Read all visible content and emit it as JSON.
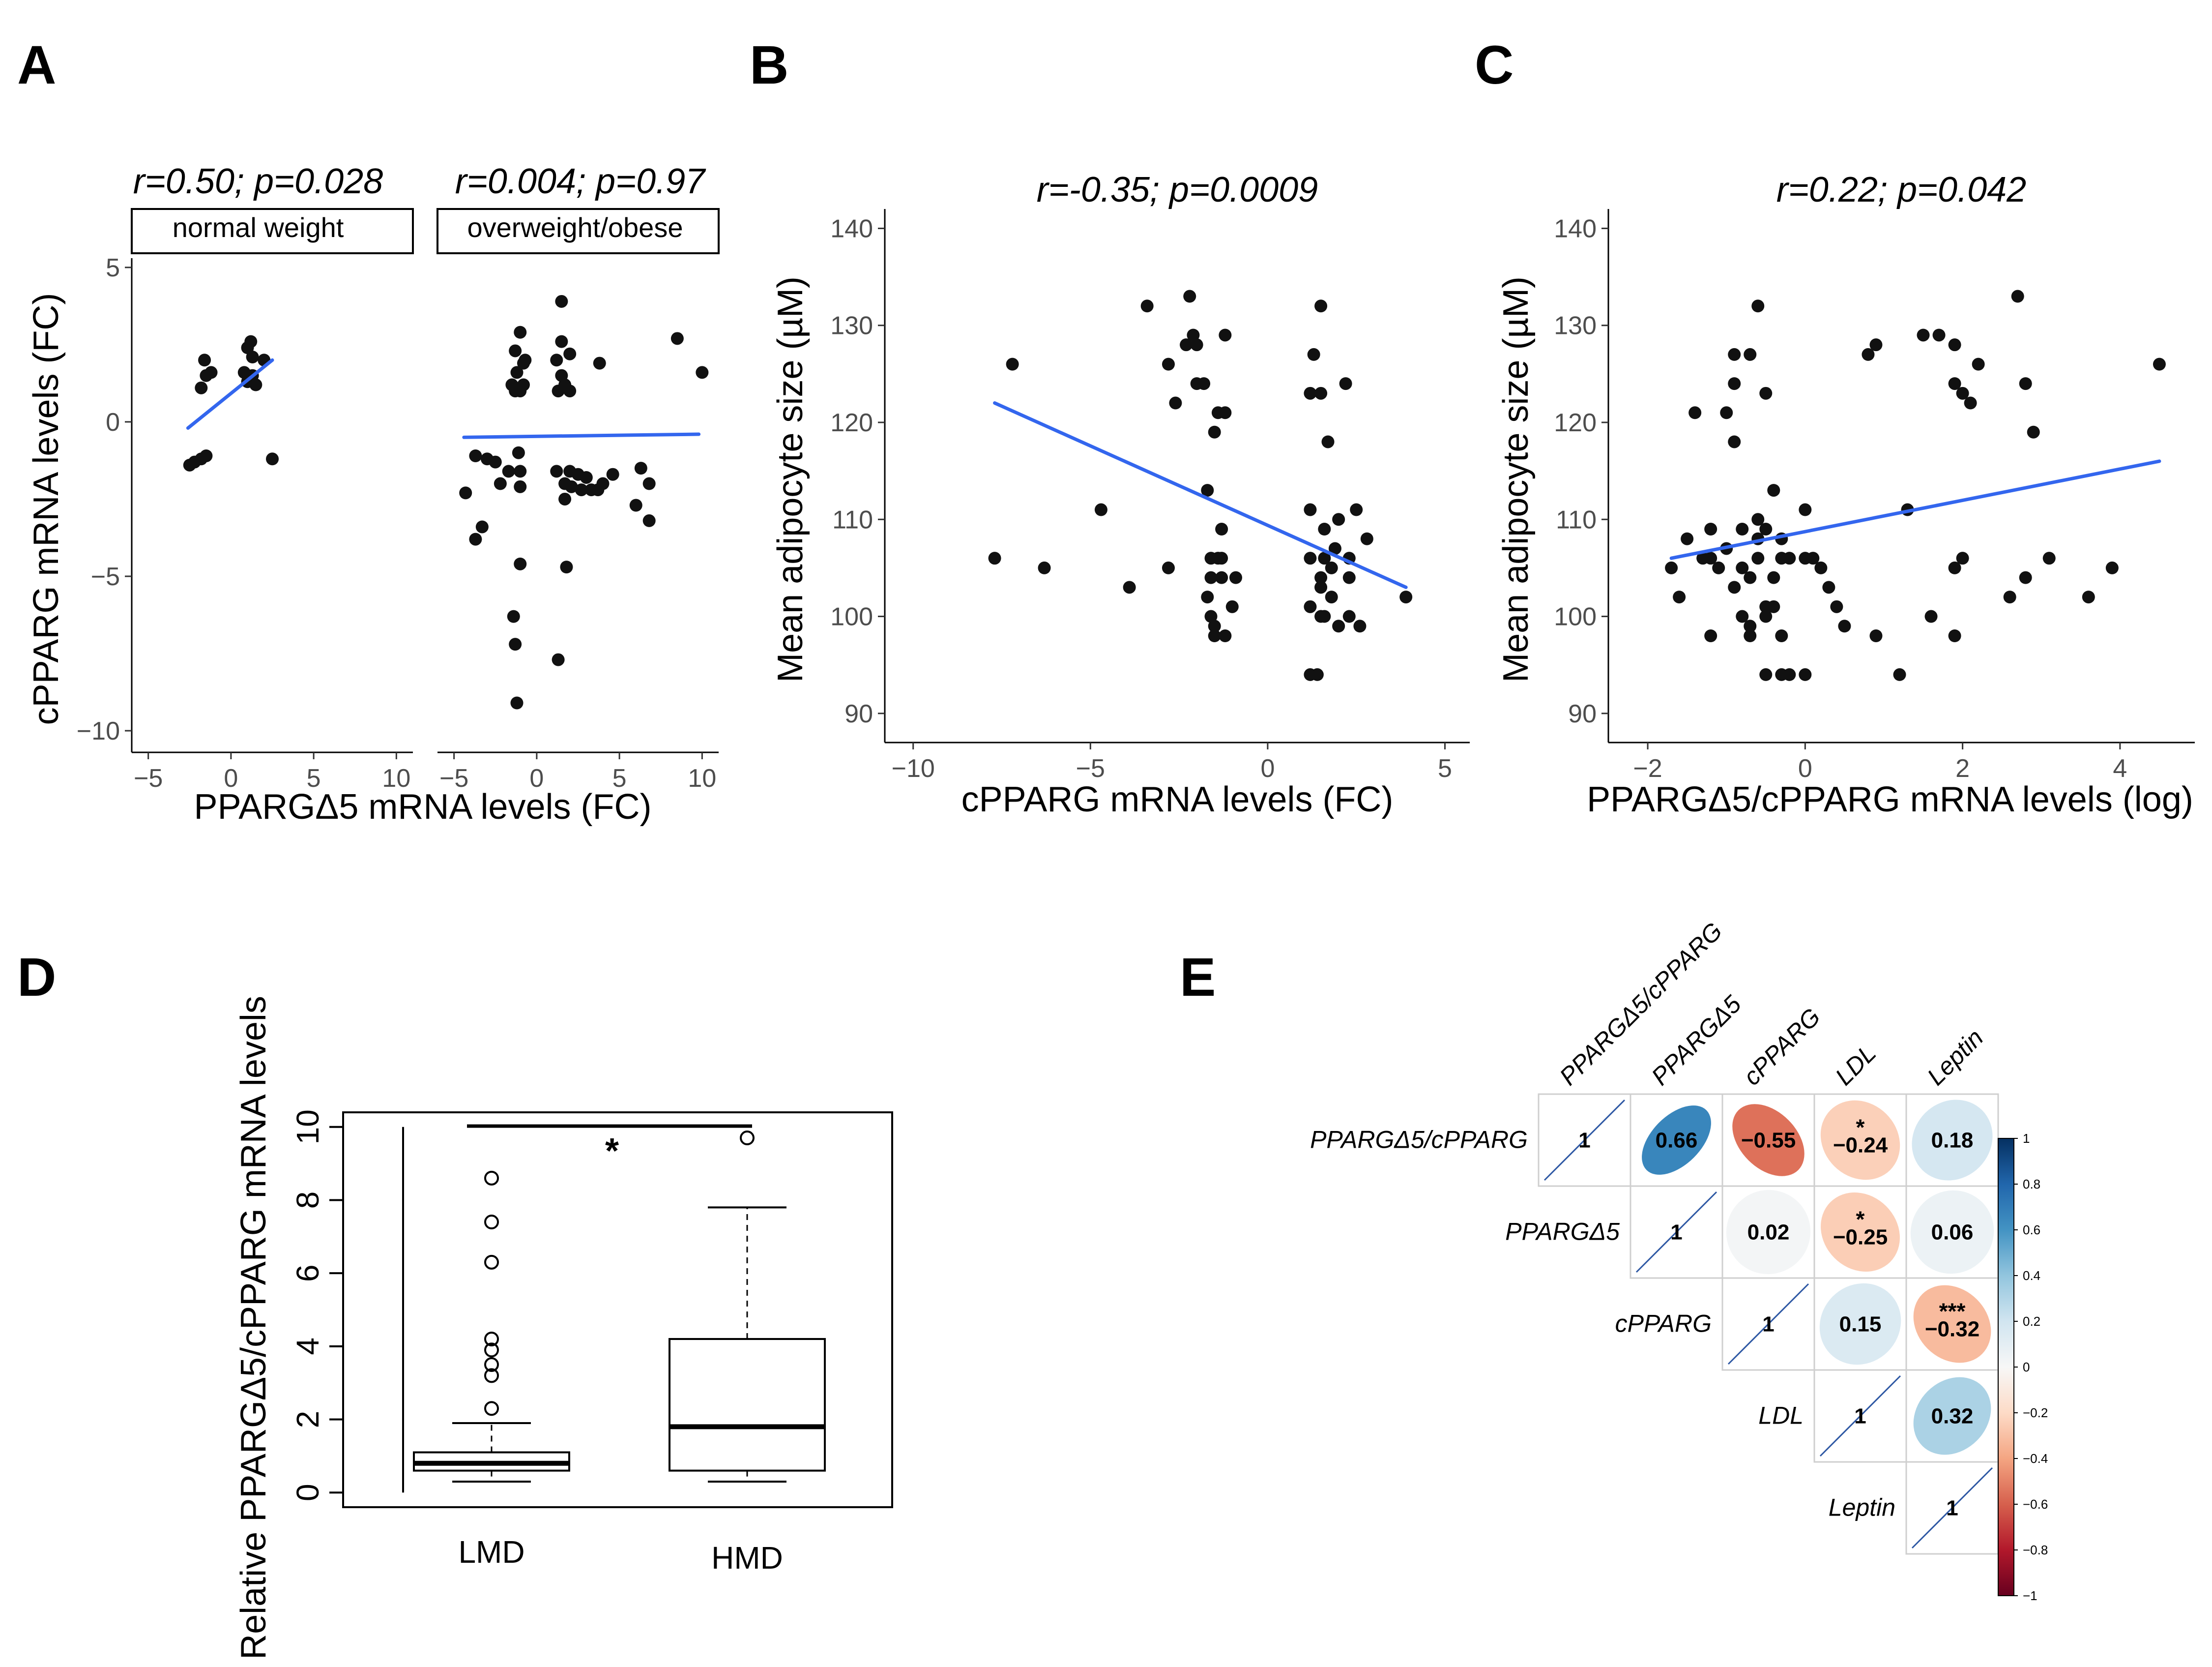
{
  "panel_labels": [
    "A",
    "B",
    "C",
    "D",
    "E"
  ],
  "chart_data": [
    {
      "panel": "A",
      "type": "scatter",
      "xlabel": "PPARGΔ5 mRNA levels (FC)",
      "ylabel": "cPPARG mRNA levels (FC)",
      "xticks": [
        -5,
        0,
        5,
        10
      ],
      "yticks": [
        5,
        0,
        -5,
        -10
      ],
      "xlim": [
        -6,
        11
      ],
      "ylim": [
        -10.7,
        5.3
      ],
      "facets": [
        {
          "strip": "normal weight",
          "annotation": "r=0.50; p=0.028",
          "points": [
            [
              -2.5,
              -1.4
            ],
            [
              -2.2,
              -1.3
            ],
            [
              -1.8,
              -1.2
            ],
            [
              -1.5,
              -1.1
            ],
            [
              -1.5,
              1.5
            ],
            [
              -1.8,
              1.1
            ],
            [
              -1.6,
              2.0
            ],
            [
              -1.2,
              1.6
            ],
            [
              0.8,
              1.6
            ],
            [
              1.0,
              2.4
            ],
            [
              1.2,
              2.6
            ],
            [
              1.3,
              2.1
            ],
            [
              1.3,
              1.5
            ],
            [
              1.0,
              1.3
            ],
            [
              1.5,
              1.2
            ],
            [
              2.0,
              2.0
            ],
            [
              2.5,
              -1.2
            ]
          ],
          "fit": [
            [
              -2.6,
              -0.2
            ],
            [
              2.5,
              2.0
            ]
          ]
        },
        {
          "strip": "overweight/obese",
          "annotation": "r=0.004; p=0.97",
          "points": [
            [
              -1.5,
              1.2
            ],
            [
              -1.3,
              1.0
            ],
            [
              -1.0,
              1.0
            ],
            [
              -0.8,
              1.2
            ],
            [
              -1.2,
              1.6
            ],
            [
              -0.8,
              1.9
            ],
            [
              -1.3,
              2.3
            ],
            [
              -1.0,
              2.9
            ],
            [
              -0.7,
              2.0
            ],
            [
              1.3,
              1.0
            ],
            [
              1.5,
              1.5
            ],
            [
              1.7,
              1.2
            ],
            [
              1.2,
              2.0
            ],
            [
              2.0,
              2.2
            ],
            [
              1.5,
              2.6
            ],
            [
              1.5,
              3.9
            ],
            [
              2.0,
              1.0
            ],
            [
              3.8,
              1.9
            ],
            [
              8.5,
              2.7
            ],
            [
              10.0,
              1.6
            ],
            [
              -4.3,
              -2.3
            ],
            [
              -3.7,
              -1.1
            ],
            [
              -3.0,
              -1.2
            ],
            [
              -2.5,
              -1.3
            ],
            [
              -3.3,
              -3.4
            ],
            [
              -3.7,
              -3.8
            ],
            [
              -1.7,
              -1.6
            ],
            [
              -1.1,
              -1.0
            ],
            [
              -1.0,
              -1.6
            ],
            [
              -1.0,
              -2.1
            ],
            [
              -2.2,
              -2.0
            ],
            [
              1.2,
              -1.6
            ],
            [
              2.0,
              -1.6
            ],
            [
              2.5,
              -1.7
            ],
            [
              3.0,
              -1.8
            ],
            [
              1.7,
              -2.0
            ],
            [
              1.7,
              -2.5
            ],
            [
              2.1,
              -2.1
            ],
            [
              2.7,
              -2.2
            ],
            [
              3.3,
              -2.2
            ],
            [
              3.7,
              -2.2
            ],
            [
              4.0,
              -2.0
            ],
            [
              4.6,
              -1.7
            ],
            [
              6.3,
              -1.5
            ],
            [
              6.0,
              -2.7
            ],
            [
              6.8,
              -2.0
            ],
            [
              6.8,
              -3.2
            ],
            [
              -1.0,
              -4.6
            ],
            [
              -1.4,
              -6.3
            ],
            [
              -1.3,
              -7.2
            ],
            [
              -1.2,
              -9.1
            ],
            [
              1.3,
              -7.7
            ],
            [
              1.8,
              -4.7
            ]
          ],
          "fit": [
            [
              -4.4,
              -0.5
            ],
            [
              9.8,
              -0.4
            ]
          ]
        }
      ]
    },
    {
      "panel": "B",
      "type": "scatter",
      "title": "r=-0.35; p=0.0009",
      "xlabel": "cPPARG mRNA levels (FC)",
      "ylabel": "Mean adipocyte size (µM)",
      "xticks": [
        -10,
        -5,
        0,
        5
      ],
      "yticks": [
        140,
        130,
        120,
        110,
        100,
        90
      ],
      "xlim": [
        -10.8,
        5.7
      ],
      "ylim": [
        87,
        142
      ],
      "points": [
        [
          -7.7,
          106
        ],
        [
          -7.2,
          126
        ],
        [
          -6.3,
          105
        ],
        [
          -4.7,
          111
        ],
        [
          -3.9,
          103
        ],
        [
          -3.4,
          132
        ],
        [
          -2.8,
          105
        ],
        [
          -2.6,
          122
        ],
        [
          -2.2,
          133
        ],
        [
          -2.1,
          129
        ],
        [
          -2.3,
          128
        ],
        [
          -2.0,
          128
        ],
        [
          -1.8,
          124
        ],
        [
          -2.0,
          124
        ],
        [
          -1.5,
          119
        ],
        [
          -1.2,
          129
        ],
        [
          -1.4,
          121
        ],
        [
          -1.2,
          121
        ],
        [
          -1.7,
          113
        ],
        [
          -1.3,
          109
        ],
        [
          -1.6,
          106
        ],
        [
          -1.4,
          106
        ],
        [
          -1.3,
          106
        ],
        [
          -1.6,
          104
        ],
        [
          -1.3,
          104
        ],
        [
          -0.9,
          104
        ],
        [
          -1.7,
          102
        ],
        [
          -1.6,
          100
        ],
        [
          -1.0,
          101
        ],
        [
          -1.5,
          99
        ],
        [
          -1.2,
          98
        ],
        [
          -1.5,
          98
        ],
        [
          -2.8,
          126
        ],
        [
          1.5,
          132
        ],
        [
          1.3,
          127
        ],
        [
          1.2,
          123
        ],
        [
          1.5,
          123
        ],
        [
          2.2,
          124
        ],
        [
          1.7,
          118
        ],
        [
          1.2,
          111
        ],
        [
          2.0,
          110
        ],
        [
          2.5,
          111
        ],
        [
          1.6,
          109
        ],
        [
          1.9,
          107
        ],
        [
          1.6,
          106
        ],
        [
          1.2,
          106
        ],
        [
          1.5,
          104
        ],
        [
          2.3,
          106
        ],
        [
          1.8,
          105
        ],
        [
          2.3,
          104
        ],
        [
          2.8,
          108
        ],
        [
          1.5,
          103
        ],
        [
          1.2,
          101
        ],
        [
          1.8,
          102
        ],
        [
          1.6,
          100
        ],
        [
          1.5,
          100
        ],
        [
          2.0,
          99
        ],
        [
          2.3,
          100
        ],
        [
          2.6,
          99
        ],
        [
          1.2,
          94
        ],
        [
          1.4,
          94
        ],
        [
          3.9,
          102
        ]
      ],
      "fit": [
        [
          -7.7,
          122
        ],
        [
          3.9,
          103
        ]
      ]
    },
    {
      "panel": "C",
      "type": "scatter",
      "title": "r=0.22; p=0.042",
      "xlabel": "PPARGΔ5/cPPARG mRNA levels (log)",
      "ylabel": "Mean adipocyte size (µM)",
      "xticks": [
        -2,
        0,
        2,
        4
      ],
      "yticks": [
        140,
        130,
        120,
        110,
        100,
        90
      ],
      "xlim": [
        -2.5,
        4.95
      ],
      "ylim": [
        87,
        142
      ],
      "points": [
        [
          -1.4,
          121
        ],
        [
          -0.9,
          124
        ],
        [
          -1.0,
          121
        ],
        [
          -0.9,
          127
        ],
        [
          -0.7,
          127
        ],
        [
          -0.6,
          132
        ],
        [
          -0.5,
          123
        ],
        [
          -0.9,
          118
        ],
        [
          -1.5,
          108
        ],
        [
          -1.2,
          109
        ],
        [
          -1.3,
          106
        ],
        [
          -1.0,
          107
        ],
        [
          -0.8,
          109
        ],
        [
          -0.6,
          110
        ],
        [
          -0.5,
          109
        ],
        [
          -0.4,
          113
        ],
        [
          -0.6,
          108
        ],
        [
          -0.3,
          108
        ],
        [
          -0.4,
          104
        ],
        [
          -0.5,
          101
        ],
        [
          0.0,
          111
        ],
        [
          -0.2,
          106
        ],
        [
          0.0,
          106
        ],
        [
          0.1,
          106
        ],
        [
          0.2,
          105
        ],
        [
          0.3,
          103
        ],
        [
          -1.2,
          106
        ],
        [
          -1.1,
          105
        ],
        [
          -0.8,
          105
        ],
        [
          -0.9,
          103
        ],
        [
          -0.7,
          104
        ],
        [
          -0.6,
          106
        ],
        [
          -0.3,
          106
        ],
        [
          -1.7,
          105
        ],
        [
          -1.6,
          102
        ],
        [
          -1.2,
          98
        ],
        [
          -0.8,
          100
        ],
        [
          -0.7,
          99
        ],
        [
          -0.5,
          100
        ],
        [
          -0.3,
          98
        ],
        [
          -0.4,
          101
        ],
        [
          -0.7,
          98
        ],
        [
          -0.5,
          94
        ],
        [
          -0.3,
          94
        ],
        [
          -0.2,
          94
        ],
        [
          0.0,
          94
        ],
        [
          0.4,
          101
        ],
        [
          0.5,
          99
        ],
        [
          0.8,
          127
        ],
        [
          0.9,
          128
        ],
        [
          1.5,
          129
        ],
        [
          1.7,
          129
        ],
        [
          1.9,
          128
        ],
        [
          1.9,
          124
        ],
        [
          2.0,
          123
        ],
        [
          2.1,
          122
        ],
        [
          2.2,
          126
        ],
        [
          2.7,
          133
        ],
        [
          2.8,
          124
        ],
        [
          2.9,
          119
        ],
        [
          1.3,
          111
        ],
        [
          1.9,
          105
        ],
        [
          2.0,
          106
        ],
        [
          3.1,
          106
        ],
        [
          2.8,
          104
        ],
        [
          2.6,
          102
        ],
        [
          3.6,
          102
        ],
        [
          3.9,
          105
        ],
        [
          4.5,
          126
        ],
        [
          0.9,
          98
        ],
        [
          1.6,
          100
        ],
        [
          1.9,
          98
        ],
        [
          1.2,
          94
        ]
      ],
      "fit": [
        [
          -1.7,
          106
        ],
        [
          4.5,
          116
        ]
      ]
    },
    {
      "panel": "D",
      "type": "box",
      "ylabel": "Relative PPARGΔ5/cPPARG mRNA levels",
      "categories": [
        "LMD",
        "HMD"
      ],
      "yticks": [
        0,
        2,
        4,
        6,
        8,
        10
      ],
      "ylim": [
        -0.4,
        10.4
      ],
      "significance": "*",
      "boxes": [
        {
          "name": "LMD",
          "q1": 0.6,
          "median": 0.8,
          "q3": 1.1,
          "whisker_low": 0.3,
          "whisker_high": 1.9,
          "outliers": [
            2.3,
            3.2,
            3.5,
            3.9,
            4.2,
            6.3,
            7.4,
            8.6
          ]
        },
        {
          "name": "HMD",
          "q1": 0.6,
          "median": 1.8,
          "q3": 4.2,
          "whisker_low": 0.3,
          "whisker_high": 7.8,
          "outliers": [
            9.7
          ]
        }
      ]
    },
    {
      "panel": "E",
      "type": "heatmap",
      "variables": [
        "PPARGΔ5/cPPARG",
        "PPARGΔ5",
        "cPPARG",
        "LDL",
        "Leptin"
      ],
      "diagonal_label": "1",
      "colorbar_ticks": [
        "1",
        "0.8",
        "0.6",
        "0.4",
        "0.2",
        "0",
        "−0.2",
        "−0.4",
        "−0.6",
        "−0.8",
        "−1"
      ],
      "colorbar_colors": [
        "#053061",
        "#2166ac",
        "#4393c3",
        "#92c5de",
        "#d1e5f0",
        "#f7f7f7",
        "#fddbc7",
        "#f4a582",
        "#d6604d",
        "#b2182b",
        "#67001f"
      ],
      "cells": [
        {
          "row": 0,
          "col": 1,
          "value": 0.66,
          "label": "0.66",
          "stars": ""
        },
        {
          "row": 0,
          "col": 2,
          "value": -0.55,
          "label": "−0.55",
          "stars": ""
        },
        {
          "row": 0,
          "col": 3,
          "value": -0.24,
          "label": "−0.24",
          "stars": "*"
        },
        {
          "row": 0,
          "col": 4,
          "value": 0.18,
          "label": "0.18",
          "stars": ""
        },
        {
          "row": 1,
          "col": 2,
          "value": 0.02,
          "label": "0.02",
          "stars": ""
        },
        {
          "row": 1,
          "col": 3,
          "value": -0.25,
          "label": "−0.25",
          "stars": "*"
        },
        {
          "row": 1,
          "col": 4,
          "value": 0.06,
          "label": "0.06",
          "stars": ""
        },
        {
          "row": 2,
          "col": 3,
          "value": 0.15,
          "label": "0.15",
          "stars": ""
        },
        {
          "row": 2,
          "col": 4,
          "value": -0.32,
          "label": "−0.32",
          "stars": "***"
        },
        {
          "row": 3,
          "col": 4,
          "value": 0.32,
          "label": "0.32",
          "stars": ""
        }
      ]
    }
  ]
}
